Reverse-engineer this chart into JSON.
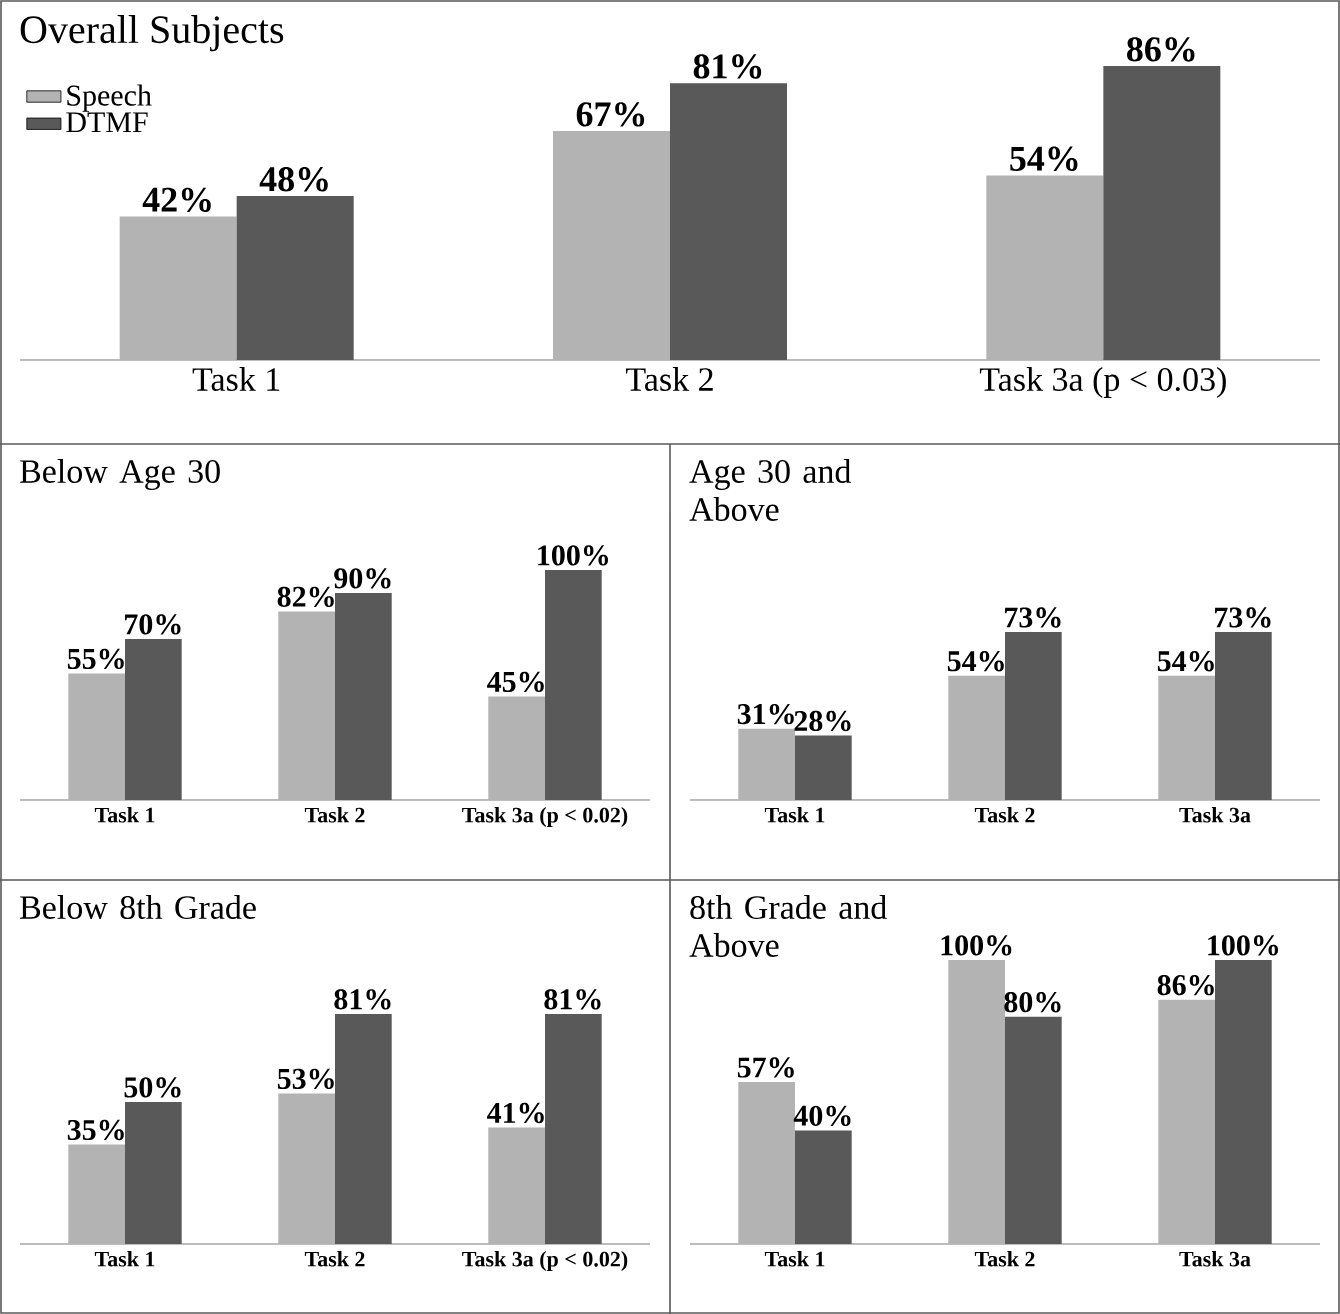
{
  "chart_data": [
    {
      "type": "bar",
      "title": "Overall Subjects",
      "categories": [
        "Task 1",
        "Task 2",
        "Task 3a (p < 0.03)"
      ],
      "tick_labels": "x",
      "legend": "top left",
      "series": [
        {
          "name": "Speech",
          "color": "#b3b3b3",
          "values": [
            42,
            67,
            54
          ],
          "value_labels": [
            "42%",
            "67%",
            "54%"
          ]
        },
        {
          "name": "DTMF",
          "color": "#595959",
          "values": [
            48,
            81,
            86
          ],
          "value_labels": [
            "48%",
            "81%",
            "86%"
          ]
        }
      ]
    },
    {
      "type": "bar",
      "title": "Below Age 30",
      "categories": [
        "Task 1",
        "Task 2",
        "Task 3a (p < 0.02)"
      ],
      "tick_labels": "x",
      "series": [
        {
          "color": "#b3b3b3",
          "values": [
            55,
            82,
            45
          ],
          "value_labels": [
            "55%",
            "82%",
            "45%"
          ]
        },
        {
          "color": "#595959",
          "values": [
            70,
            90,
            100
          ],
          "value_labels": [
            "70%",
            "90%",
            "100%"
          ]
        }
      ]
    },
    {
      "type": "bar",
      "title": "Age 30 and Above",
      "categories": [
        "Task 1",
        "Task 2",
        "Task 3a"
      ],
      "tick_labels": "x",
      "series": [
        {
          "color": "#b3b3b3",
          "values": [
            31,
            54,
            54
          ],
          "value_labels": [
            "31%",
            "54%",
            "54%"
          ]
        },
        {
          "color": "#595959",
          "values": [
            28,
            73,
            73
          ],
          "value_labels": [
            "28%",
            "73%",
            "73%"
          ]
        }
      ]
    },
    {
      "type": "bar",
      "title": "Below 8th Grade",
      "categories": [
        "Task 1",
        "Task 2",
        "Task 3a (p < 0.02)"
      ],
      "tick_labels": "x",
      "series": [
        {
          "color": "#b3b3b3",
          "values": [
            35,
            53,
            41
          ],
          "value_labels": [
            "35%",
            "53%",
            "41%"
          ]
        },
        {
          "color": "#595959",
          "values": [
            50,
            81,
            81
          ],
          "value_labels": [
            "50%",
            "81%",
            "81%"
          ]
        }
      ]
    },
    {
      "type": "bar",
      "title": "8th Grade and Above",
      "categories": [
        "Task 1",
        "Task 2",
        "Task 3a"
      ],
      "tick_labels": "x",
      "series": [
        {
          "color": "#b3b3b3",
          "values": [
            57,
            100,
            86
          ],
          "value_labels": [
            "57%",
            "100%",
            "86%"
          ]
        },
        {
          "color": "#595959",
          "values": [
            40,
            80,
            100
          ],
          "value_labels": [
            "40%",
            "80%",
            "100%"
          ]
        }
      ]
    }
  ]
}
